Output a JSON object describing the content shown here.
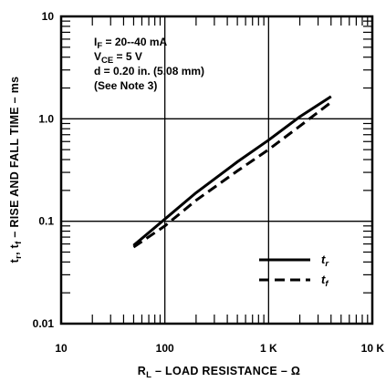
{
  "chart_data": {
    "type": "line",
    "x_scale": "log",
    "y_scale": "log",
    "xlim": [
      10,
      10000
    ],
    "ylim": [
      0.01,
      10
    ],
    "grid": "major",
    "xlabel": {
      "main": "R",
      "sub": "L",
      "rest": " – LOAD RESISTANCE – Ω"
    },
    "ylabel": {
      "a": "t",
      "a_sub": "r",
      "mid": ", t",
      "b_sub": "f",
      "rest": "  – RISE AND FALL TIME – ms"
    },
    "x_ticks": [
      {
        "value": 10,
        "label": "10"
      },
      {
        "value": 100,
        "label": "100"
      },
      {
        "value": 1000,
        "label": "1 K"
      },
      {
        "value": 10000,
        "label": "10 K"
      }
    ],
    "y_ticks": [
      {
        "value": 0.01,
        "label": "0.01"
      },
      {
        "value": 0.1,
        "label": "0.1"
      },
      {
        "value": 1,
        "label": "1.0"
      },
      {
        "value": 10,
        "label": "10"
      }
    ],
    "annotations": [
      {
        "main": "I",
        "sub": "F",
        "rest": " = 20--40 mA"
      },
      {
        "main": "V",
        "sub": "CE",
        "rest": " = 5 V"
      },
      {
        "main": "d = 0.20 in. (5.08 mm)",
        "sub": "",
        "rest": ""
      },
      {
        "main": "(See Note 3)",
        "sub": "",
        "rest": ""
      }
    ],
    "legend": {
      "placement": "bottom-right"
    },
    "series": [
      {
        "legend_main": "t",
        "legend_sub": "r",
        "dash": "solid",
        "x": [
          50,
          100,
          200,
          500,
          1000,
          2000,
          4000
        ],
        "y": [
          0.058,
          0.105,
          0.19,
          0.38,
          0.62,
          1.05,
          1.65
        ]
      },
      {
        "legend_main": "t",
        "legend_sub": "f",
        "dash": "dashed",
        "x": [
          50,
          100,
          200,
          500,
          1000,
          2000,
          4000
        ],
        "y": [
          0.056,
          0.09,
          0.16,
          0.31,
          0.5,
          0.85,
          1.45
        ]
      }
    ]
  }
}
